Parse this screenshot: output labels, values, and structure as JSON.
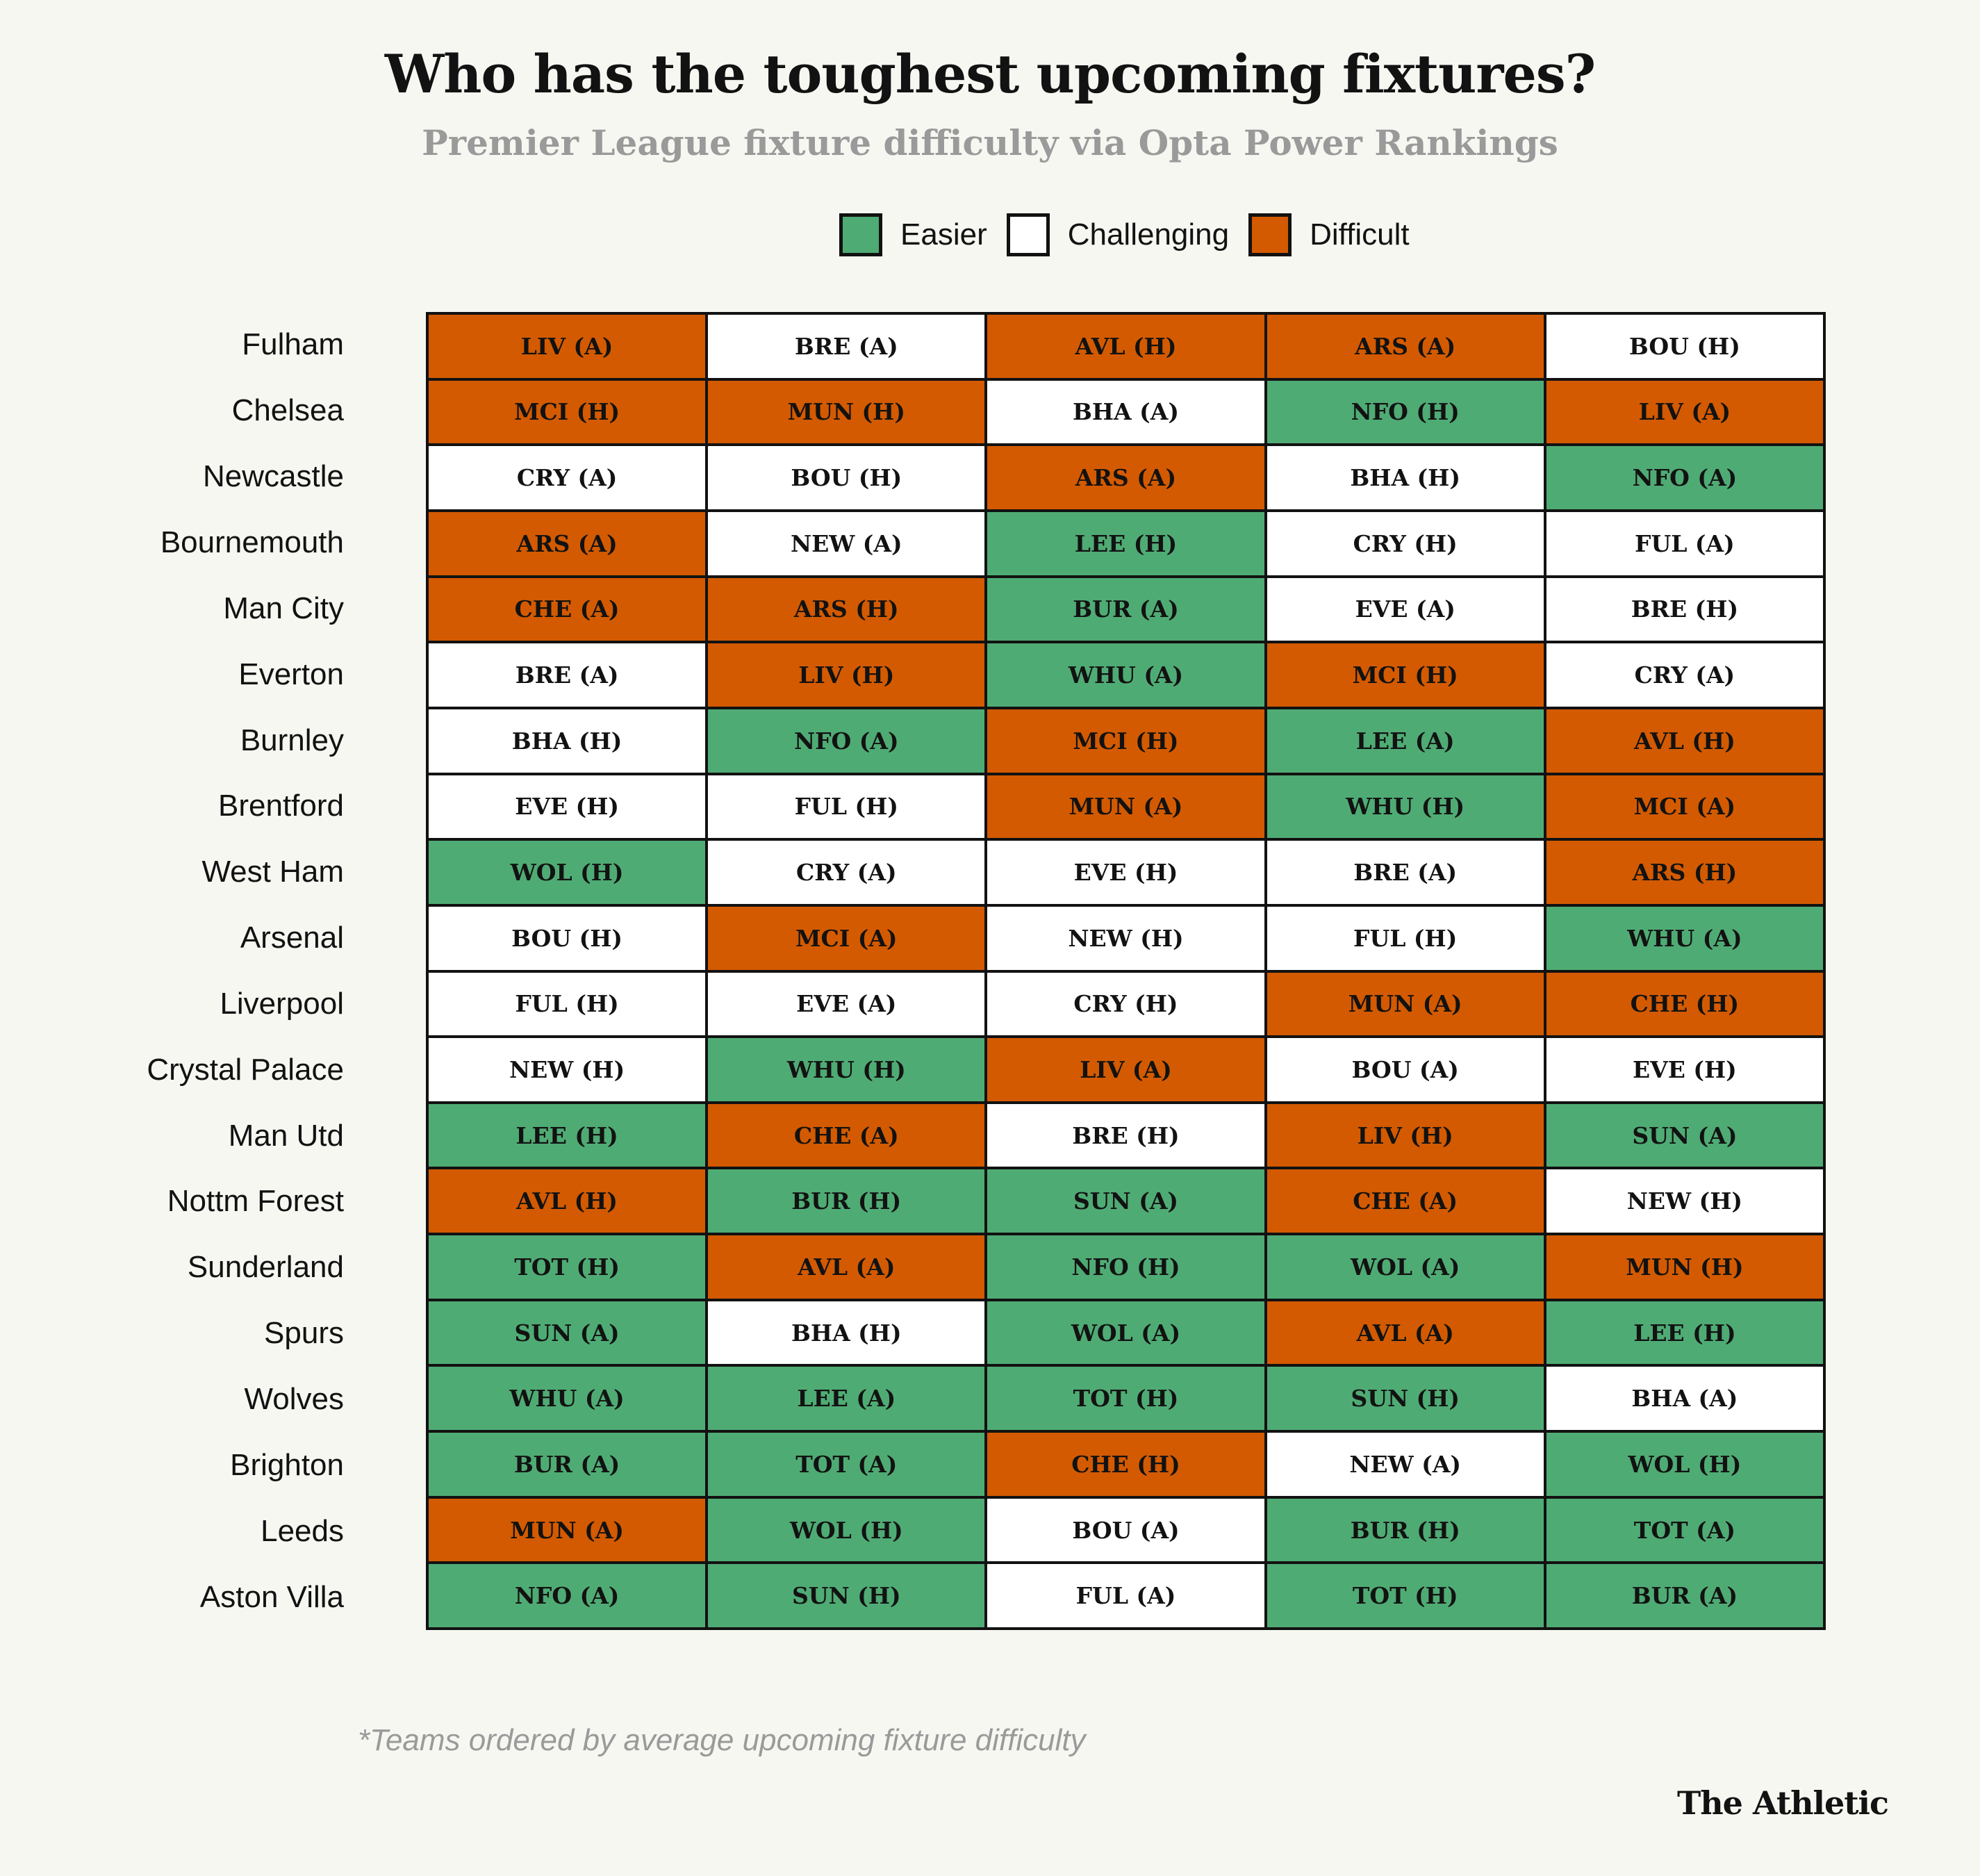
{
  "chart_data": {
    "type": "table",
    "title": "Who has the toughest upcoming fixtures?",
    "subtitle": "Premier League fixture difficulty via Opta Power Rankings",
    "legend": [
      {
        "key": "easier",
        "label": "Easier",
        "color": "#4fab74"
      },
      {
        "key": "challenging",
        "label": "Challenging",
        "color": "#ffffff"
      },
      {
        "key": "difficult",
        "label": "Difficult",
        "color": "#d35a00"
      }
    ],
    "legend_placement": "top-center",
    "rows": [
      {
        "team": "Fulham",
        "fixtures": [
          [
            "LIV (A)",
            "difficult"
          ],
          [
            "BRE (A)",
            "challenging"
          ],
          [
            "AVL (H)",
            "difficult"
          ],
          [
            "ARS (A)",
            "difficult"
          ],
          [
            "BOU (H)",
            "challenging"
          ]
        ]
      },
      {
        "team": "Chelsea",
        "fixtures": [
          [
            "MCI (H)",
            "difficult"
          ],
          [
            "MUN (H)",
            "difficult"
          ],
          [
            "BHA (A)",
            "challenging"
          ],
          [
            "NFO (H)",
            "easier"
          ],
          [
            "LIV (A)",
            "difficult"
          ]
        ]
      },
      {
        "team": "Newcastle",
        "fixtures": [
          [
            "CRY (A)",
            "challenging"
          ],
          [
            "BOU (H)",
            "challenging"
          ],
          [
            "ARS (A)",
            "difficult"
          ],
          [
            "BHA (H)",
            "challenging"
          ],
          [
            "NFO (A)",
            "easier"
          ]
        ]
      },
      {
        "team": "Bournemouth",
        "fixtures": [
          [
            "ARS (A)",
            "difficult"
          ],
          [
            "NEW (A)",
            "challenging"
          ],
          [
            "LEE (H)",
            "easier"
          ],
          [
            "CRY (H)",
            "challenging"
          ],
          [
            "FUL (A)",
            "challenging"
          ]
        ]
      },
      {
        "team": "Man City",
        "fixtures": [
          [
            "CHE (A)",
            "difficult"
          ],
          [
            "ARS (H)",
            "difficult"
          ],
          [
            "BUR (A)",
            "easier"
          ],
          [
            "EVE (A)",
            "challenging"
          ],
          [
            "BRE (H)",
            "challenging"
          ]
        ]
      },
      {
        "team": "Everton",
        "fixtures": [
          [
            "BRE (A)",
            "challenging"
          ],
          [
            "LIV (H)",
            "difficult"
          ],
          [
            "WHU (A)",
            "easier"
          ],
          [
            "MCI (H)",
            "difficult"
          ],
          [
            "CRY (A)",
            "challenging"
          ]
        ]
      },
      {
        "team": "Burnley",
        "fixtures": [
          [
            "BHA (H)",
            "challenging"
          ],
          [
            "NFO (A)",
            "easier"
          ],
          [
            "MCI (H)",
            "difficult"
          ],
          [
            "LEE (A)",
            "easier"
          ],
          [
            "AVL (H)",
            "difficult"
          ]
        ]
      },
      {
        "team": "Brentford",
        "fixtures": [
          [
            "EVE (H)",
            "challenging"
          ],
          [
            "FUL (H)",
            "challenging"
          ],
          [
            "MUN (A)",
            "difficult"
          ],
          [
            "WHU (H)",
            "easier"
          ],
          [
            "MCI (A)",
            "difficult"
          ]
        ]
      },
      {
        "team": "West Ham",
        "fixtures": [
          [
            "WOL (H)",
            "easier"
          ],
          [
            "CRY (A)",
            "challenging"
          ],
          [
            "EVE (H)",
            "challenging"
          ],
          [
            "BRE (A)",
            "challenging"
          ],
          [
            "ARS (H)",
            "difficult"
          ]
        ]
      },
      {
        "team": "Arsenal",
        "fixtures": [
          [
            "BOU (H)",
            "challenging"
          ],
          [
            "MCI (A)",
            "difficult"
          ],
          [
            "NEW (H)",
            "challenging"
          ],
          [
            "FUL (H)",
            "challenging"
          ],
          [
            "WHU (A)",
            "easier"
          ]
        ]
      },
      {
        "team": "Liverpool",
        "fixtures": [
          [
            "FUL (H)",
            "challenging"
          ],
          [
            "EVE (A)",
            "challenging"
          ],
          [
            "CRY (H)",
            "challenging"
          ],
          [
            "MUN (A)",
            "difficult"
          ],
          [
            "CHE (H)",
            "difficult"
          ]
        ]
      },
      {
        "team": "Crystal Palace",
        "fixtures": [
          [
            "NEW (H)",
            "challenging"
          ],
          [
            "WHU (H)",
            "easier"
          ],
          [
            "LIV (A)",
            "difficult"
          ],
          [
            "BOU (A)",
            "challenging"
          ],
          [
            "EVE (H)",
            "challenging"
          ]
        ]
      },
      {
        "team": "Man Utd",
        "fixtures": [
          [
            "LEE (H)",
            "easier"
          ],
          [
            "CHE (A)",
            "difficult"
          ],
          [
            "BRE (H)",
            "challenging"
          ],
          [
            "LIV (H)",
            "difficult"
          ],
          [
            "SUN (A)",
            "easier"
          ]
        ]
      },
      {
        "team": "Nottm Forest",
        "fixtures": [
          [
            "AVL (H)",
            "difficult"
          ],
          [
            "BUR (H)",
            "easier"
          ],
          [
            "SUN (A)",
            "easier"
          ],
          [
            "CHE (A)",
            "difficult"
          ],
          [
            "NEW (H)",
            "challenging"
          ]
        ]
      },
      {
        "team": "Sunderland",
        "fixtures": [
          [
            "TOT (H)",
            "easier"
          ],
          [
            "AVL (A)",
            "difficult"
          ],
          [
            "NFO (H)",
            "easier"
          ],
          [
            "WOL (A)",
            "easier"
          ],
          [
            "MUN (H)",
            "difficult"
          ]
        ]
      },
      {
        "team": "Spurs",
        "fixtures": [
          [
            "SUN (A)",
            "easier"
          ],
          [
            "BHA (H)",
            "challenging"
          ],
          [
            "WOL (A)",
            "easier"
          ],
          [
            "AVL (A)",
            "difficult"
          ],
          [
            "LEE (H)",
            "easier"
          ]
        ]
      },
      {
        "team": "Wolves",
        "fixtures": [
          [
            "WHU (A)",
            "easier"
          ],
          [
            "LEE (A)",
            "easier"
          ],
          [
            "TOT (H)",
            "easier"
          ],
          [
            "SUN (H)",
            "easier"
          ],
          [
            "BHA (A)",
            "challenging"
          ]
        ]
      },
      {
        "team": "Brighton",
        "fixtures": [
          [
            "BUR (A)",
            "easier"
          ],
          [
            "TOT (A)",
            "easier"
          ],
          [
            "CHE (H)",
            "difficult"
          ],
          [
            "NEW (A)",
            "challenging"
          ],
          [
            "WOL (H)",
            "easier"
          ]
        ]
      },
      {
        "team": "Leeds",
        "fixtures": [
          [
            "MUN (A)",
            "difficult"
          ],
          [
            "WOL (H)",
            "easier"
          ],
          [
            "BOU (A)",
            "challenging"
          ],
          [
            "BUR (H)",
            "easier"
          ],
          [
            "TOT (A)",
            "easier"
          ]
        ]
      },
      {
        "team": "Aston Villa",
        "fixtures": [
          [
            "NFO (A)",
            "easier"
          ],
          [
            "SUN (H)",
            "easier"
          ],
          [
            "FUL (A)",
            "challenging"
          ],
          [
            "TOT (H)",
            "easier"
          ],
          [
            "BUR (A)",
            "easier"
          ]
        ]
      }
    ],
    "footnote": "*Teams ordered by average upcoming fixture difficulty"
  },
  "brand": "The Athletic"
}
